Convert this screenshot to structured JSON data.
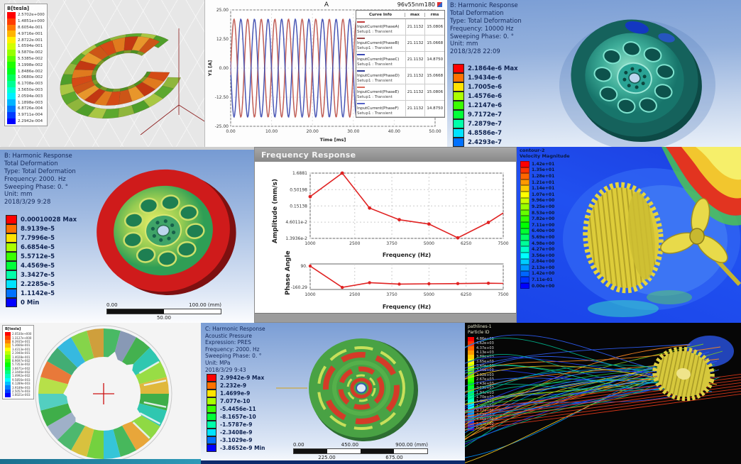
{
  "tl": {
    "legend_title": "B[tesla]",
    "legend_values": [
      "2.5702e+000",
      "1.4851e+000",
      "8.6054e-001",
      "4.9716e-001",
      "2.8722e-001",
      "1.6594e-001",
      "9.5870e-002",
      "5.5385e-002",
      "3.1998e-002",
      "1.8486e-002",
      "1.0680e-002",
      "6.1708e-003",
      "3.5650e-003",
      "2.0594e-003",
      "1.1898e-003",
      "6.8726e-004",
      "3.9711e-004",
      "2.2942e-004"
    ]
  },
  "wave": {
    "title": "A",
    "model_label": "96v55nm180",
    "x_label": "Time [ms]",
    "y_label": "Y1 [A]"
  },
  "tr": {
    "header_lines": [
      "B: Harmonic Response",
      "Total Deformation",
      "Type: Total Deformation",
      "Frequency: 10000 Hz",
      "Sweeping Phase: 0. °",
      "Unit: mm",
      "2018/3/28 22:09"
    ],
    "legend": [
      "2.1864e-6 Max",
      "1.9434e-6",
      "1.7005e-6",
      "1.4576e-6",
      "1.2147e-6",
      "9.7172e-7",
      "7.2879e-7",
      "4.8586e-7",
      "2.4293e-7",
      "0 Min"
    ]
  },
  "ml": {
    "header_lines": [
      "B: Harmonic Response",
      "Total Deformation",
      "Type: Total Deformation",
      "Frequency: 2000. Hz",
      "Sweeping Phase: 0. °",
      "Unit: mm",
      "2018/3/29 9:28"
    ],
    "legend": [
      "0.00010028 Max",
      "8.9139e-5",
      "7.7996e-5",
      "6.6854e-5",
      "5.5712e-5",
      "4.4569e-5",
      "3.3427e-5",
      "2.2285e-5",
      "1.1142e-5",
      "0 Min"
    ],
    "scale_bar": {
      "left": "0.00",
      "right": "100.00 (mm)",
      "center_below": "50.00"
    }
  },
  "fr": {
    "title": "Frequency Response",
    "amp_label": "Amplitude (mm/s)",
    "phase_label": "Phase Angle",
    "x_label": "Frequency (Hz)",
    "amp_ticks": [
      "1.6881",
      "0.50198",
      "0.15138",
      "4.6011e-2",
      "1.3936e-2"
    ],
    "phase_ticks": [
      "90.",
      "-160.29"
    ],
    "x_ticks": [
      "1000",
      "2500",
      "3750",
      "5000",
      "6250",
      "7500"
    ]
  },
  "cfd": {
    "header_lines": [
      "contour-2",
      "Velocity Magnitude"
    ],
    "legend": [
      "1.42e+01",
      "1.35e+01",
      "1.28e+01",
      "1.21e+01",
      "1.14e+01",
      "1.07e+01",
      "9.96e+00",
      "9.25e+00",
      "8.53e+00",
      "7.82e+00",
      "7.11e+00",
      "6.40e+00",
      "5.69e+00",
      "4.98e+00",
      "4.27e+00",
      "3.56e+00",
      "2.84e+00",
      "2.13e+00",
      "1.42e+00",
      "7.11e-01",
      "0.00e+00"
    ]
  },
  "bl": {
    "legend_title": "B[tesla]",
    "legend_values": [
      "2.0530e+000",
      "1.3127e+000",
      "8.3935e-001",
      "5.3666e-001",
      "3.4313e-001",
      "2.1940e-001",
      "1.4028e-001",
      "8.9697e-002",
      "5.7353e-002",
      "3.6671e-002",
      "2.3446e-002",
      "1.4992e-002",
      "9.5856e-003",
      "6.1289e-003",
      "3.9189e-003",
      "2.5057e-003",
      "1.6021e-003"
    ]
  },
  "ac": {
    "header_lines": [
      "C: Harmonic Response",
      "Acoustic Pressure",
      "Expression: PRES",
      "Frequency: 2000. Hz",
      "Sweeping Phase: 0. °",
      "Unit: MPa",
      "2018/3/29 9:43"
    ],
    "legend": [
      "2.9942e-9 Max",
      "2.232e-9",
      "1.4699e-9",
      "7.077e-10",
      "-5.4456e-11",
      "-8.1657e-10",
      "-1.5787e-9",
      "-2.3408e-9",
      "-3.1029e-9",
      "-3.8652e-9 Min"
    ],
    "scale_bar": {
      "left": "0.00",
      "center": "450.00",
      "right": "900.00 (mm)",
      "q1": "225.00",
      "q3": "675.00"
    }
  },
  "pl": {
    "header_lines": [
      "pathlines-1",
      "Particle ID"
    ],
    "legend": [
      "4.86e+03",
      "4.62e+03",
      "4.37e+03",
      "4.13e+03",
      "3.89e+03",
      "3.65e+03",
      "3.40e+03",
      "3.16e+03",
      "2.92e+03",
      "2.67e+03",
      "2.43e+03",
      "2.19e+03",
      "1.94e+03",
      "1.70e+03",
      "1.46e+03",
      "1.22e+03",
      "9.72e+02",
      "7.29e+02",
      "4.86e+02",
      "2.43e+02",
      "0.00e+00"
    ]
  },
  "chart_data": [
    {
      "type": "line",
      "title": "A",
      "subtitle": "96v55nm180",
      "xlabel": "Time [ms]",
      "ylabel": "Y1 [A]",
      "xlim": [
        0,
        50
      ],
      "ylim": [
        -25,
        25
      ],
      "x_ticks": [
        0,
        10,
        20,
        30,
        40,
        50
      ],
      "y_ticks": [
        25,
        12.5,
        0,
        -12.5,
        -25
      ],
      "waveform": {
        "amplitude": 21.1132,
        "period_ms": 3.33
      },
      "legend_headers": [
        "Curve Info",
        "max",
        "rms"
      ],
      "series": [
        {
          "name": "InputCurrent(PhaseA)",
          "setup": "Setup1 : Transient",
          "max": "21.1132",
          "rms": "15.0806",
          "color": "#c23b3b",
          "phase_deg": 0
        },
        {
          "name": "InputCurrent(PhaseB)",
          "setup": "Setup1 : Transient",
          "max": "21.1132",
          "rms": "15.0668",
          "color": "#9c4a4a",
          "phase_deg": 8
        },
        {
          "name": "InputCurrent(PhaseC)",
          "setup": "Setup1 : Transient",
          "max": "21.1132",
          "rms": "14.8750",
          "color": "#3a49b5",
          "phase_deg": 180
        },
        {
          "name": "InputCurrent(PhaseD)",
          "setup": "Setup1 : Transient",
          "max": "21.1132",
          "rms": "15.0668",
          "color": "#2c3a96",
          "phase_deg": 188
        },
        {
          "name": "InputCurrent(PhaseE)",
          "setup": "Setup1 : Transient",
          "max": "21.1132",
          "rms": "15.0806",
          "color": "#d96a5a",
          "phase_deg": -8
        },
        {
          "name": "InputCurrent(PhaseF)",
          "setup": "Setup1 : Transient",
          "max": "21.1132",
          "rms": "14.8750",
          "color": "#5563c9",
          "phase_deg": 172
        }
      ]
    },
    {
      "type": "line",
      "title": "Frequency Response",
      "xlabel": "Frequency (Hz)",
      "ylabel": "Amplitude (mm/s)",
      "yscale": "log",
      "xlim": [
        1000,
        7500
      ],
      "x_ticks": [
        1000,
        2500,
        3750,
        5000,
        6250,
        7500
      ],
      "y_ticks": [
        1.6881,
        0.50198,
        0.15138,
        0.046011,
        0.013936
      ],
      "x": [
        1000,
        2080,
        3000,
        4000,
        5000,
        5970,
        7000,
        7500
      ],
      "y": [
        0.3,
        1.6881,
        0.13,
        0.055,
        0.04,
        0.0145,
        0.045,
        0.09
      ],
      "line_color": "#e02222"
    },
    {
      "type": "line",
      "title": "Phase",
      "xlabel": "Frequency (Hz)",
      "ylabel": "Phase Angle",
      "xlim": [
        1000,
        7500
      ],
      "ylim": [
        -185,
        115
      ],
      "x_ticks": [
        1000,
        2500,
        3750,
        5000,
        6250,
        7500
      ],
      "y_ticks": [
        90,
        -160.29
      ],
      "x": [
        1000,
        2080,
        3000,
        4000,
        5000,
        5970,
        7000,
        7500
      ],
      "y": [
        90,
        -160.29,
        -105,
        -122,
        -118,
        -116,
        -112,
        -114
      ],
      "line_color": "#e02222"
    }
  ]
}
